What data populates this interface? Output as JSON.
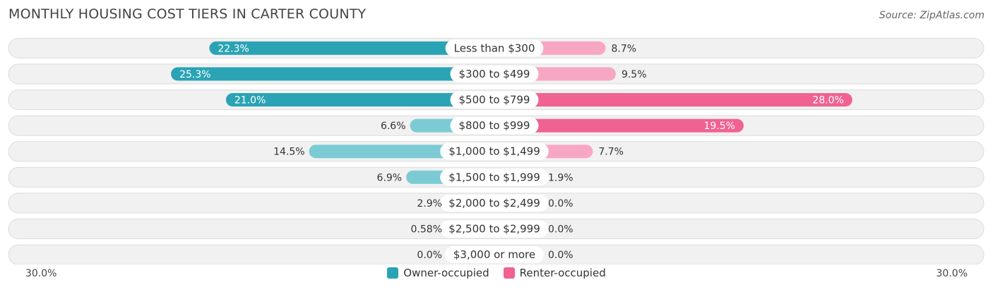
{
  "title": "MONTHLY HOUSING COST TIERS IN CARTER COUNTY",
  "source": "Source: ZipAtlas.com",
  "colors": {
    "owner": "#2aa3b5",
    "owner_light": "#7ccbd4",
    "renter": "#f06292",
    "renter_light": "#f7a7c3"
  },
  "axis": {
    "left_label": "30.0%",
    "right_label": "30.0%"
  },
  "legend": {
    "owner_label": "Owner-occupied",
    "renter_label": "Renter-occupied"
  },
  "chart_data": {
    "type": "bar",
    "title": "MONTHLY HOUSING COST TIERS IN CARTER COUNTY",
    "categories": [
      "Less than $300",
      "$300 to $499",
      "$500 to $799",
      "$800 to $999",
      "$1,000 to $1,499",
      "$1,500 to $1,999",
      "$2,000 to $2,499",
      "$2,500 to $2,999",
      "$3,000 or more"
    ],
    "series": [
      {
        "name": "Owner-occupied",
        "values": [
          22.3,
          25.3,
          21.0,
          6.6,
          14.5,
          6.9,
          2.9,
          0.58,
          0.0
        ],
        "labels": [
          "22.3%",
          "25.3%",
          "21.0%",
          "6.6%",
          "14.5%",
          "6.9%",
          "2.9%",
          "0.58%",
          "0.0%"
        ]
      },
      {
        "name": "Renter-occupied",
        "values": [
          8.7,
          9.5,
          28.0,
          19.5,
          7.7,
          1.9,
          0.0,
          0.0,
          0.0
        ],
        "labels": [
          "8.7%",
          "9.5%",
          "28.0%",
          "19.5%",
          "7.7%",
          "1.9%",
          "0.0%",
          "0.0%",
          "0.0%"
        ]
      }
    ],
    "xlim": [
      -30,
      30
    ],
    "legend_position": "bottom-center"
  }
}
